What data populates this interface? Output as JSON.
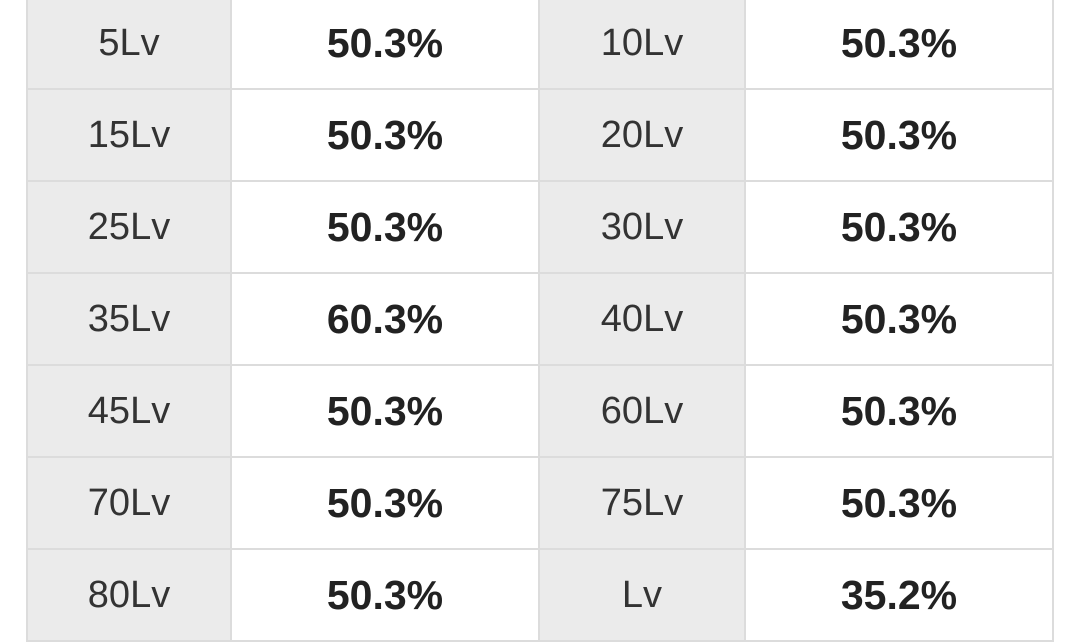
{
  "table": {
    "rows": [
      [
        "5Lv",
        "50.3%",
        "10Lv",
        "50.3%"
      ],
      [
        "15Lv",
        "50.3%",
        "20Lv",
        "50.3%"
      ],
      [
        "25Lv",
        "50.3%",
        "30Lv",
        "50.3%"
      ],
      [
        "35Lv",
        "60.3%",
        "40Lv",
        "50.3%"
      ],
      [
        "45Lv",
        "50.3%",
        "60Lv",
        "50.3%"
      ],
      [
        "70Lv",
        "50.3%",
        "75Lv",
        "50.3%"
      ],
      [
        "80Lv",
        "50.3%",
        "Lv",
        "35.2%"
      ]
    ]
  }
}
